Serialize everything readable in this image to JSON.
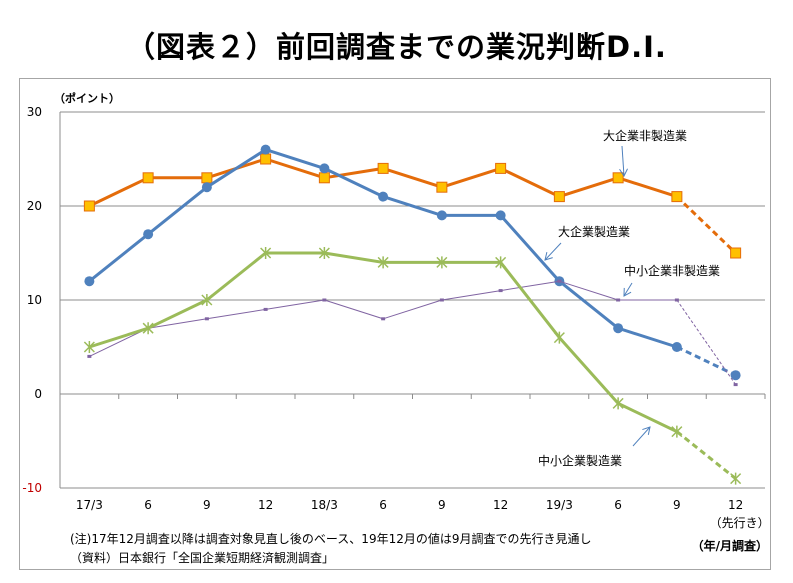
{
  "title": "（図表２）前回調査までの業況判断D.I.",
  "chart_data": {
    "type": "line",
    "ylabel": "（ポイント）",
    "xlabel": "（年/月調査）",
    "ylim": [
      -10,
      30
    ],
    "yticks": [
      -10,
      0,
      10,
      20,
      30
    ],
    "categories": [
      "17/3",
      "6",
      "9",
      "12",
      "18/3",
      "6",
      "9",
      "12",
      "19/3",
      "6",
      "9",
      "12"
    ],
    "forecast_label": "（先行き）",
    "grid": "horizontal",
    "series": [
      {
        "name": "大企業非製造業",
        "color": "#e46c0a",
        "marker": "square",
        "values": [
          20,
          23,
          23,
          25,
          23,
          24,
          22,
          24,
          21,
          23,
          21,
          15
        ]
      },
      {
        "name": "大企業製造業",
        "color": "#4f81bd",
        "marker": "circle",
        "values": [
          12,
          17,
          22,
          26,
          24,
          21,
          19,
          19,
          12,
          7,
          5,
          2
        ]
      },
      {
        "name": "中小企業非製造業",
        "color": "#8064a2",
        "marker": "dash",
        "values": [
          4,
          7,
          8,
          9,
          10,
          8,
          10,
          11,
          12,
          10,
          10,
          1
        ]
      },
      {
        "name": "中小企業製造業",
        "color": "#9bbb59",
        "marker": "star",
        "values": [
          5,
          7,
          10,
          15,
          15,
          14,
          14,
          14,
          6,
          -1,
          -4,
          -9
        ]
      }
    ]
  },
  "notes": {
    "note1": "(注)17年12月調査以降は調査対象見直し後のベース、19年12月の値は9月調査での先行き見通し",
    "note2": "（資料）日本銀行「全国企業短期経済観測調査」"
  }
}
